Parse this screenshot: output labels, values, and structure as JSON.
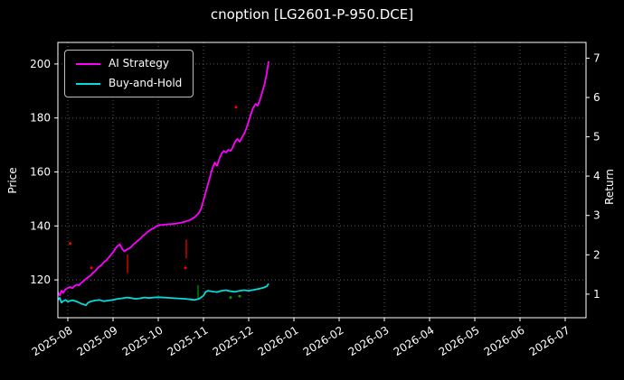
{
  "title": "cnoption [LG2601-P-950.DCE]",
  "chart_data": {
    "type": "line",
    "title": "cnoption [LG2601-P-950.DCE]",
    "xlabel": "",
    "ylabel_left": "Price",
    "ylabel_right": "Return",
    "background": "#000000",
    "text_color": "#ffffff",
    "grid": true,
    "grid_color": "#5a5a5a",
    "legend_position": "upper left",
    "x_ticks": [
      "2025-08",
      "2025-09",
      "2025-10",
      "2025-11",
      "2025-12",
      "2026-01",
      "2026-02",
      "2026-03",
      "2026-04",
      "2026-05",
      "2026-06",
      "2026-07"
    ],
    "x_unit": "months since 2025-08",
    "xlim": [
      -0.22,
      11.46
    ],
    "ylim_left": [
      106,
      208
    ],
    "ylim_right": [
      0.4,
      7.4
    ],
    "y_left_ticks": [
      120,
      140,
      160,
      180,
      200
    ],
    "y_right_ticks": [
      1,
      2,
      3,
      4,
      5,
      6,
      7
    ],
    "series": [
      {
        "name": "AI Strategy",
        "color": "#ff00ff",
        "axis": "left",
        "points": [
          [
            -0.22,
            115.5
          ],
          [
            -0.18,
            114.2
          ],
          [
            -0.14,
            116.0
          ],
          [
            -0.1,
            115.2
          ],
          [
            -0.06,
            116.4
          ],
          [
            0.0,
            117.0
          ],
          [
            0.05,
            117.4
          ],
          [
            0.1,
            117.0
          ],
          [
            0.15,
            117.8
          ],
          [
            0.2,
            118.2
          ],
          [
            0.25,
            118.0
          ],
          [
            0.3,
            119.0
          ],
          [
            0.35,
            119.6
          ],
          [
            0.4,
            120.4
          ],
          [
            0.45,
            121.0
          ],
          [
            0.5,
            121.6
          ],
          [
            0.55,
            122.6
          ],
          [
            0.6,
            123.2
          ],
          [
            0.65,
            124.2
          ],
          [
            0.7,
            125.0
          ],
          [
            0.75,
            125.6
          ],
          [
            0.8,
            126.6
          ],
          [
            0.85,
            127.2
          ],
          [
            0.9,
            128.2
          ],
          [
            0.95,
            129.2
          ],
          [
            1.0,
            130.2
          ],
          [
            1.05,
            131.6
          ],
          [
            1.1,
            132.6
          ],
          [
            1.15,
            133.2
          ],
          [
            1.2,
            131.6
          ],
          [
            1.25,
            130.6
          ],
          [
            1.3,
            131.2
          ],
          [
            1.35,
            131.6
          ],
          [
            1.4,
            132.2
          ],
          [
            1.45,
            133.2
          ],
          [
            1.5,
            133.8
          ],
          [
            1.55,
            134.6
          ],
          [
            1.6,
            135.2
          ],
          [
            1.65,
            136.2
          ],
          [
            1.7,
            136.8
          ],
          [
            1.75,
            137.6
          ],
          [
            1.8,
            138.2
          ],
          [
            1.85,
            138.8
          ],
          [
            1.9,
            139.2
          ],
          [
            1.95,
            139.8
          ],
          [
            2.0,
            140.2
          ],
          [
            2.1,
            140.4
          ],
          [
            2.2,
            140.6
          ],
          [
            2.3,
            140.7
          ],
          [
            2.4,
            140.9
          ],
          [
            2.5,
            141.2
          ],
          [
            2.6,
            141.6
          ],
          [
            2.7,
            142.2
          ],
          [
            2.8,
            143.2
          ],
          [
            2.9,
            144.8
          ],
          [
            2.95,
            146.5
          ],
          [
            3.0,
            149.5
          ],
          [
            3.05,
            152.5
          ],
          [
            3.1,
            155.5
          ],
          [
            3.15,
            158.5
          ],
          [
            3.2,
            161.5
          ],
          [
            3.25,
            163.5
          ],
          [
            3.3,
            162.3
          ],
          [
            3.35,
            164.8
          ],
          [
            3.4,
            166.8
          ],
          [
            3.45,
            167.8
          ],
          [
            3.5,
            167.2
          ],
          [
            3.55,
            168.2
          ],
          [
            3.6,
            167.8
          ],
          [
            3.65,
            169.2
          ],
          [
            3.7,
            171.2
          ],
          [
            3.75,
            172.2
          ],
          [
            3.8,
            171.2
          ],
          [
            3.85,
            172.8
          ],
          [
            3.9,
            174.2
          ],
          [
            3.95,
            176.2
          ],
          [
            4.0,
            178.8
          ],
          [
            4.05,
            181.5
          ],
          [
            4.1,
            183.8
          ],
          [
            4.15,
            185.2
          ],
          [
            4.2,
            184.6
          ],
          [
            4.25,
            186.8
          ],
          [
            4.3,
            189.5
          ],
          [
            4.35,
            192.5
          ],
          [
            4.4,
            196.5
          ],
          [
            4.44,
            201.0
          ]
        ]
      },
      {
        "name": "Buy-and-Hold",
        "color": "#00dddd",
        "axis": "left",
        "points": [
          [
            -0.22,
            112.6
          ],
          [
            -0.18,
            113.4
          ],
          [
            -0.14,
            111.6
          ],
          [
            -0.1,
            112.2
          ],
          [
            -0.05,
            112.6
          ],
          [
            0.0,
            112.0
          ],
          [
            0.1,
            112.5
          ],
          [
            0.2,
            112.0
          ],
          [
            0.3,
            111.2
          ],
          [
            0.4,
            110.6
          ],
          [
            0.45,
            111.6
          ],
          [
            0.5,
            112.0
          ],
          [
            0.6,
            112.4
          ],
          [
            0.7,
            112.6
          ],
          [
            0.8,
            112.1
          ],
          [
            0.9,
            112.4
          ],
          [
            1.0,
            112.6
          ],
          [
            1.1,
            113.0
          ],
          [
            1.2,
            113.2
          ],
          [
            1.3,
            113.5
          ],
          [
            1.4,
            113.3
          ],
          [
            1.5,
            113.0
          ],
          [
            1.6,
            113.2
          ],
          [
            1.7,
            113.5
          ],
          [
            1.8,
            113.3
          ],
          [
            1.9,
            113.5
          ],
          [
            2.0,
            113.6
          ],
          [
            2.2,
            113.4
          ],
          [
            2.4,
            113.2
          ],
          [
            2.6,
            113.0
          ],
          [
            2.7,
            112.8
          ],
          [
            2.8,
            112.6
          ],
          [
            2.9,
            113.0
          ],
          [
            3.0,
            114.2
          ],
          [
            3.05,
            115.6
          ],
          [
            3.1,
            116.0
          ],
          [
            3.2,
            115.7
          ],
          [
            3.3,
            115.5
          ],
          [
            3.4,
            116.0
          ],
          [
            3.5,
            116.2
          ],
          [
            3.6,
            115.8
          ],
          [
            3.7,
            115.6
          ],
          [
            3.8,
            116.0
          ],
          [
            3.9,
            116.2
          ],
          [
            4.0,
            116.0
          ],
          [
            4.1,
            116.3
          ],
          [
            4.2,
            116.6
          ],
          [
            4.3,
            117.0
          ],
          [
            4.4,
            117.6
          ],
          [
            4.44,
            118.6
          ]
        ]
      }
    ],
    "signals": {
      "sell_color": "#ff0000",
      "buy_color": "#00a000",
      "sell_dashes": [
        [
          1.32,
          122.5,
          129.5
        ],
        [
          2.62,
          128.0,
          135.0
        ]
      ],
      "buy_dashes": [
        [
          2.88,
          113.0,
          118.0
        ]
      ],
      "sell_dots": [
        [
          0.05,
          133.5
        ],
        [
          0.52,
          124.5
        ],
        [
          2.6,
          124.5
        ],
        [
          3.72,
          184.0
        ]
      ],
      "buy_dots": [
        [
          3.6,
          113.5
        ],
        [
          3.8,
          114.0
        ]
      ]
    }
  },
  "legend": {
    "items": [
      {
        "label": "AI Strategy"
      },
      {
        "label": "Buy-and-Hold"
      }
    ]
  }
}
